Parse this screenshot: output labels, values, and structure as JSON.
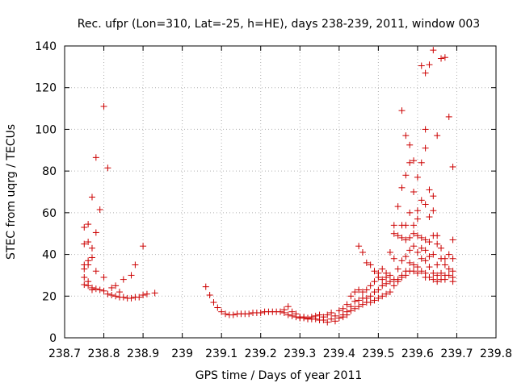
{
  "chart_data": {
    "type": "scatter",
    "title": "Rec. ufpr (Lon=310, Lat=-25, h=HE), days 238-239, 2011, window 003",
    "xlabel": "GPS time / Days of year 2011",
    "ylabel": "STEC from uqrg / TECUs",
    "xlim": [
      238.7,
      239.8
    ],
    "ylim": [
      0,
      140
    ],
    "x_ticks": [
      238.7,
      238.8,
      238.9,
      239.0,
      239.1,
      239.2,
      239.3,
      239.4,
      239.5,
      239.6,
      239.7,
      239.8
    ],
    "x_tick_labels": [
      "238.7",
      "238.8",
      "238.9",
      "239",
      "239.1",
      "239.2",
      "239.3",
      "239.4",
      "239.5",
      "239.6",
      "239.7",
      "239.8"
    ],
    "y_ticks": [
      0,
      20,
      40,
      60,
      80,
      100,
      120,
      140
    ],
    "y_tick_labels": [
      "0",
      "20",
      "40",
      "60",
      "80",
      "100",
      "120",
      "140"
    ],
    "grid": true,
    "marker": "+",
    "colors": {
      "series": "#cc0000",
      "grid": "#b0b0b0",
      "axis": "#000000"
    },
    "series": [
      {
        "points": [
          [
            238.75,
            53
          ],
          [
            238.75,
            45
          ],
          [
            238.75,
            35
          ],
          [
            238.75,
            33
          ],
          [
            238.75,
            29
          ],
          [
            238.75,
            25.5
          ],
          [
            238.76,
            54.5
          ],
          [
            238.76,
            46
          ],
          [
            238.76,
            37
          ],
          [
            238.76,
            35
          ],
          [
            238.76,
            27
          ],
          [
            238.76,
            25
          ],
          [
            238.77,
            67.5
          ],
          [
            238.77,
            43
          ],
          [
            238.77,
            38.5
          ],
          [
            238.77,
            24
          ],
          [
            238.77,
            23
          ],
          [
            238.78,
            86.5
          ],
          [
            238.78,
            50.5
          ],
          [
            238.78,
            32
          ],
          [
            238.78,
            23.5
          ],
          [
            238.79,
            61.5
          ],
          [
            238.79,
            23
          ],
          [
            238.8,
            111
          ],
          [
            238.8,
            29
          ],
          [
            238.8,
            22.5
          ],
          [
            238.81,
            81.5
          ],
          [
            238.81,
            21
          ],
          [
            238.82,
            24
          ],
          [
            238.82,
            20.5
          ],
          [
            238.83,
            25
          ],
          [
            238.83,
            20
          ],
          [
            238.84,
            22
          ],
          [
            238.84,
            19.5
          ],
          [
            238.85,
            28
          ],
          [
            238.85,
            19.5
          ],
          [
            238.86,
            19
          ],
          [
            238.87,
            30
          ],
          [
            238.87,
            19
          ],
          [
            238.88,
            35
          ],
          [
            238.88,
            19.5
          ],
          [
            238.89,
            19.5
          ],
          [
            238.9,
            44
          ],
          [
            238.9,
            20.5
          ],
          [
            238.91,
            21
          ],
          [
            238.93,
            21.5
          ],
          [
            239.06,
            24.5
          ],
          [
            239.07,
            20.5
          ],
          [
            239.08,
            17
          ],
          [
            239.09,
            14.5
          ],
          [
            239.1,
            12.5
          ],
          [
            239.11,
            11.5
          ],
          [
            239.12,
            11
          ],
          [
            239.13,
            11
          ],
          [
            239.14,
            11.5
          ],
          [
            239.15,
            11.5
          ],
          [
            239.16,
            11.5
          ],
          [
            239.17,
            11.5
          ],
          [
            239.18,
            12
          ],
          [
            239.19,
            12
          ],
          [
            239.2,
            12
          ],
          [
            239.21,
            12.5
          ],
          [
            239.22,
            12.5
          ],
          [
            239.23,
            12.5
          ],
          [
            239.24,
            12.5
          ],
          [
            239.25,
            12.5
          ],
          [
            239.26,
            13.5
          ],
          [
            239.26,
            12
          ],
          [
            239.27,
            15
          ],
          [
            239.27,
            11
          ],
          [
            239.28,
            12.5
          ],
          [
            239.28,
            10.5
          ],
          [
            239.29,
            11.5
          ],
          [
            239.29,
            10
          ],
          [
            239.3,
            10
          ],
          [
            239.3,
            9.5
          ],
          [
            239.31,
            10
          ],
          [
            239.31,
            9.5
          ],
          [
            239.32,
            9.5
          ],
          [
            239.32,
            9
          ],
          [
            239.33,
            10
          ],
          [
            239.33,
            9
          ],
          [
            239.34,
            10.5
          ],
          [
            239.34,
            9
          ],
          [
            239.35,
            11
          ],
          [
            239.35,
            8.5
          ],
          [
            239.36,
            10
          ],
          [
            239.36,
            8.5
          ],
          [
            239.37,
            11
          ],
          [
            239.37,
            7.5
          ],
          [
            239.38,
            12
          ],
          [
            239.38,
            9
          ],
          [
            239.39,
            10.5
          ],
          [
            239.39,
            8
          ],
          [
            239.4,
            13
          ],
          [
            239.4,
            9.5
          ],
          [
            239.41,
            14
          ],
          [
            239.41,
            11
          ],
          [
            239.41,
            10
          ],
          [
            239.42,
            16
          ],
          [
            239.42,
            12.5
          ],
          [
            239.42,
            11
          ],
          [
            239.43,
            20
          ],
          [
            239.43,
            15
          ],
          [
            239.43,
            13
          ],
          [
            239.44,
            22
          ],
          [
            239.44,
            17.5
          ],
          [
            239.44,
            14
          ],
          [
            239.45,
            44
          ],
          [
            239.45,
            23
          ],
          [
            239.45,
            18
          ],
          [
            239.45,
            15
          ],
          [
            239.46,
            41
          ],
          [
            239.46,
            22
          ],
          [
            239.46,
            19
          ],
          [
            239.46,
            16
          ],
          [
            239.47,
            36
          ],
          [
            239.47,
            23
          ],
          [
            239.47,
            19
          ],
          [
            239.47,
            17
          ],
          [
            239.48,
            35
          ],
          [
            239.48,
            25
          ],
          [
            239.48,
            20
          ],
          [
            239.48,
            17
          ],
          [
            239.49,
            32
          ],
          [
            239.49,
            27
          ],
          [
            239.49,
            22
          ],
          [
            239.49,
            18
          ],
          [
            239.5,
            31
          ],
          [
            239.5,
            29
          ],
          [
            239.5,
            23
          ],
          [
            239.5,
            19
          ],
          [
            239.51,
            33
          ],
          [
            239.51,
            28
          ],
          [
            239.51,
            25
          ],
          [
            239.51,
            20
          ],
          [
            239.52,
            31
          ],
          [
            239.52,
            29
          ],
          [
            239.52,
            26
          ],
          [
            239.52,
            21
          ],
          [
            239.53,
            41
          ],
          [
            239.53,
            30
          ],
          [
            239.53,
            27
          ],
          [
            239.53,
            22
          ],
          [
            239.54,
            54
          ],
          [
            239.54,
            50
          ],
          [
            239.54,
            38
          ],
          [
            239.54,
            28
          ],
          [
            239.54,
            25
          ],
          [
            239.55,
            63
          ],
          [
            239.55,
            49
          ],
          [
            239.55,
            33
          ],
          [
            239.55,
            28
          ],
          [
            239.55,
            27
          ],
          [
            239.56,
            109
          ],
          [
            239.56,
            72
          ],
          [
            239.56,
            54
          ],
          [
            239.56,
            48
          ],
          [
            239.56,
            37
          ],
          [
            239.56,
            30
          ],
          [
            239.56,
            29
          ],
          [
            239.57,
            97
          ],
          [
            239.57,
            78
          ],
          [
            239.57,
            54
          ],
          [
            239.57,
            47
          ],
          [
            239.57,
            39
          ],
          [
            239.57,
            32
          ],
          [
            239.57,
            30
          ],
          [
            239.58,
            92.5
          ],
          [
            239.58,
            84
          ],
          [
            239.58,
            60
          ],
          [
            239.58,
            48
          ],
          [
            239.58,
            42
          ],
          [
            239.58,
            36
          ],
          [
            239.58,
            32
          ],
          [
            239.59,
            85
          ],
          [
            239.59,
            70
          ],
          [
            239.59,
            54
          ],
          [
            239.59,
            50
          ],
          [
            239.59,
            44
          ],
          [
            239.59,
            35
          ],
          [
            239.59,
            32
          ],
          [
            239.6,
            77
          ],
          [
            239.6,
            61
          ],
          [
            239.6,
            57
          ],
          [
            239.6,
            49
          ],
          [
            239.6,
            41
          ],
          [
            239.6,
            34
          ],
          [
            239.6,
            31
          ],
          [
            239.61,
            130.5
          ],
          [
            239.61,
            84
          ],
          [
            239.61,
            66
          ],
          [
            239.61,
            48
          ],
          [
            239.61,
            43
          ],
          [
            239.61,
            38
          ],
          [
            239.61,
            32
          ],
          [
            239.62,
            127
          ],
          [
            239.62,
            100
          ],
          [
            239.62,
            91
          ],
          [
            239.62,
            64
          ],
          [
            239.62,
            47
          ],
          [
            239.62,
            42
          ],
          [
            239.62,
            37
          ],
          [
            239.62,
            31
          ],
          [
            239.62,
            29
          ],
          [
            239.63,
            131
          ],
          [
            239.63,
            71
          ],
          [
            239.63,
            58
          ],
          [
            239.63,
            46
          ],
          [
            239.63,
            39
          ],
          [
            239.63,
            34
          ],
          [
            239.63,
            29
          ],
          [
            239.64,
            138
          ],
          [
            239.64,
            68
          ],
          [
            239.64,
            61
          ],
          [
            239.64,
            49
          ],
          [
            239.64,
            40
          ],
          [
            239.64,
            31
          ],
          [
            239.64,
            28
          ],
          [
            239.65,
            97
          ],
          [
            239.65,
            49
          ],
          [
            239.65,
            45
          ],
          [
            239.65,
            35
          ],
          [
            239.65,
            30
          ],
          [
            239.65,
            27
          ],
          [
            239.66,
            134
          ],
          [
            239.66,
            43
          ],
          [
            239.66,
            38
          ],
          [
            239.66,
            31
          ],
          [
            239.66,
            28
          ],
          [
            239.67,
            134.5
          ],
          [
            239.67,
            38
          ],
          [
            239.67,
            35
          ],
          [
            239.67,
            30
          ],
          [
            239.67,
            28
          ],
          [
            239.68,
            106
          ],
          [
            239.68,
            40
          ],
          [
            239.68,
            33
          ],
          [
            239.68,
            30
          ],
          [
            239.69,
            82
          ],
          [
            239.69,
            47
          ],
          [
            239.69,
            38
          ],
          [
            239.69,
            32
          ],
          [
            239.69,
            29
          ],
          [
            239.69,
            27
          ]
        ]
      }
    ]
  }
}
